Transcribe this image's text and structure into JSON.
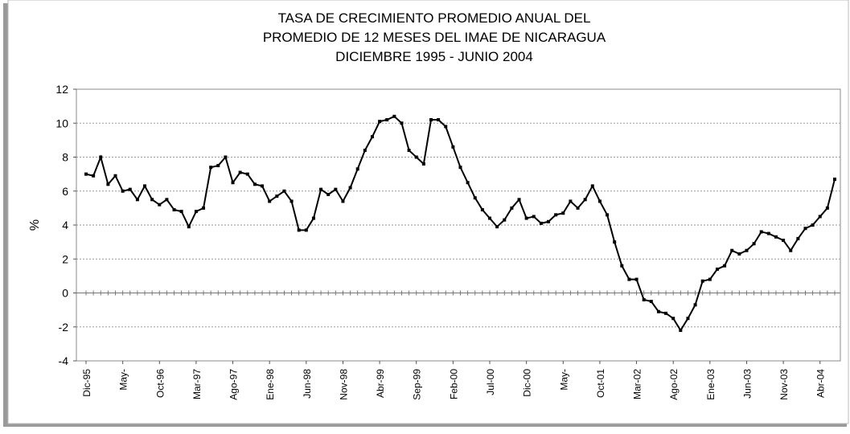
{
  "chart_data": {
    "type": "line",
    "title": [
      "TASA DE CRECIMIENTO PROMEDIO ANUAL DEL",
      "PROMEDIO DE 12 MESES DEL IMAE DE NICARAGUA",
      "DICIEMBRE 1995 - JUNIO 2004"
    ],
    "y_label": "%",
    "categories": [
      "Dic-95",
      null,
      null,
      null,
      null,
      "May-",
      null,
      null,
      null,
      null,
      "Oct-96",
      null,
      null,
      null,
      null,
      "Mar-97",
      null,
      null,
      null,
      null,
      "Ago-97",
      null,
      null,
      null,
      null,
      "Ene-98",
      null,
      null,
      null,
      null,
      "Jun-98",
      null,
      null,
      null,
      null,
      "Nov-98",
      null,
      null,
      null,
      null,
      "Abr-99",
      null,
      null,
      null,
      null,
      "Sep-99",
      null,
      null,
      null,
      null,
      "Feb-00",
      null,
      null,
      null,
      null,
      "Jul-00",
      null,
      null,
      null,
      null,
      "Dic-00",
      null,
      null,
      null,
      null,
      "May-",
      null,
      null,
      null,
      null,
      "Oct-01",
      null,
      null,
      null,
      null,
      "Mar-02",
      null,
      null,
      null,
      null,
      "Ago-02",
      null,
      null,
      null,
      null,
      "Ene-03",
      null,
      null,
      null,
      null,
      "Jun-03",
      null,
      null,
      null,
      null,
      "Nov-03",
      null,
      null,
      null,
      null,
      "Abr-04",
      null,
      null
    ],
    "series": [
      {
        "name": "IMAE",
        "color": "#000000",
        "values": [
          7.0,
          6.9,
          8.0,
          6.4,
          6.9,
          6.0,
          6.1,
          5.5,
          6.3,
          5.5,
          5.2,
          5.5,
          4.9,
          4.8,
          3.9,
          4.8,
          5.0,
          7.4,
          7.5,
          8.0,
          6.5,
          7.1,
          7.0,
          6.4,
          6.3,
          5.4,
          5.7,
          6.0,
          5.4,
          3.7,
          3.7,
          4.4,
          6.1,
          5.8,
          6.1,
          5.4,
          6.2,
          7.3,
          8.4,
          9.2,
          10.1,
          10.2,
          10.4,
          10.0,
          8.4,
          8.0,
          7.6,
          10.2,
          10.2,
          9.8,
          8.6,
          7.4,
          6.5,
          5.6,
          4.9,
          4.4,
          3.9,
          4.3,
          5.0,
          5.5,
          4.4,
          4.5,
          4.1,
          4.2,
          4.6,
          4.7,
          5.4,
          5.0,
          5.5,
          6.3,
          5.4,
          4.6,
          3.0,
          1.6,
          0.8,
          0.8,
          -0.4,
          -0.5,
          -1.1,
          -1.2,
          -1.5,
          -2.2,
          -1.5,
          -0.7,
          0.7,
          0.8,
          1.4,
          1.6,
          2.5,
          2.3,
          2.5,
          2.9,
          3.6,
          3.5,
          3.3,
          3.1,
          2.5,
          3.2,
          3.8,
          4.0,
          4.5,
          5.0,
          6.7
        ]
      }
    ],
    "ylim": [
      -4,
      12
    ],
    "yticks": [
      -4,
      -2,
      0,
      2,
      4,
      6,
      8,
      10,
      12
    ],
    "grid": true
  }
}
